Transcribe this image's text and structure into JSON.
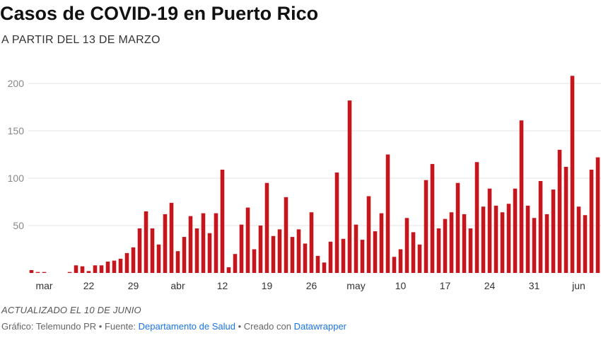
{
  "title": "Casos de COVID-19 en Puerto Rico",
  "subtitle": "A PARTIR DEL 13 DE MARZO",
  "note": "ACTUALIZADO EL 10 DE JUNIO",
  "footer": {
    "graphic_label": "Gráfico: Telemundo PR",
    "separator": " • ",
    "source_label": "Fuente: ",
    "source_link": "Departamento de Salud",
    "created_label": "Creado con ",
    "created_link": "Datawrapper"
  },
  "colors": {
    "bar": "#c4161c",
    "grid": "#e3e3e3"
  },
  "chart_data": {
    "type": "bar",
    "title": "Casos de COVID-19 en Puerto Rico",
    "subtitle": "A PARTIR DEL 13 DE MARZO",
    "xlabel": "",
    "ylabel": "",
    "ylim": [
      0,
      210
    ],
    "yticks": [
      50,
      100,
      150,
      200
    ],
    "grid": true,
    "x_start": "2020-03-13",
    "x_end": "2020-06-09",
    "x_tick_labels": [
      {
        "date": "2020-03-15",
        "label": "mar"
      },
      {
        "date": "2020-03-22",
        "label": "22"
      },
      {
        "date": "2020-03-29",
        "label": "29"
      },
      {
        "date": "2020-04-05",
        "label": "abr"
      },
      {
        "date": "2020-04-12",
        "label": "12"
      },
      {
        "date": "2020-04-19",
        "label": "19"
      },
      {
        "date": "2020-04-26",
        "label": "26"
      },
      {
        "date": "2020-05-03",
        "label": "may"
      },
      {
        "date": "2020-05-10",
        "label": "10"
      },
      {
        "date": "2020-05-17",
        "label": "17"
      },
      {
        "date": "2020-05-24",
        "label": "24"
      },
      {
        "date": "2020-05-31",
        "label": "31"
      },
      {
        "date": "2020-06-07",
        "label": "jun"
      }
    ],
    "series": [
      {
        "values": [
          3,
          1,
          1,
          0,
          0,
          0,
          1,
          8,
          7,
          2,
          8,
          8,
          12,
          13,
          15,
          21,
          27,
          47,
          65,
          47,
          30,
          62,
          74,
          23,
          38,
          60,
          47,
          63,
          42,
          63,
          109,
          6,
          20,
          51,
          69,
          25,
          50,
          95,
          39,
          46,
          80,
          38,
          46,
          31,
          64,
          18,
          11,
          33,
          106,
          36,
          182,
          51,
          35,
          81,
          44,
          63,
          125,
          17,
          25,
          58,
          43,
          30,
          98,
          115,
          47,
          57,
          64,
          95,
          62,
          47,
          117,
          70,
          89,
          71,
          64,
          73,
          89,
          161,
          71,
          58,
          97,
          62,
          88,
          130,
          112,
          208,
          70,
          61,
          109,
          122
        ]
      }
    ]
  }
}
